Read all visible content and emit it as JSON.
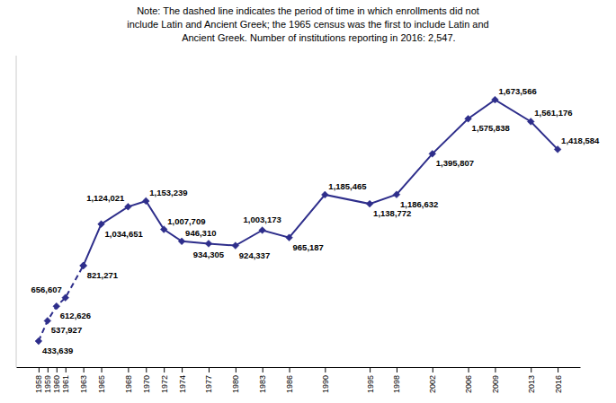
{
  "chart_data": {
    "type": "line",
    "annotations": [
      "Note: The dashed line indicates the period of time in which enrollments did not",
      "include Latin and Ancient Greek; the 1965 census was the first to include Latin and",
      "        Ancient Greek. Number of institutions reporting in 2016: 2,547."
    ],
    "x": [
      1958,
      1959,
      1960,
      1961,
      1963,
      1965,
      1968,
      1970,
      1972,
      1974,
      1977,
      1980,
      1983,
      1986,
      1990,
      1995,
      1998,
      2002,
      2006,
      2009,
      2013,
      2016
    ],
    "series": [
      {
        "color": "#2E2E8B",
        "line_style": "dashed",
        "values": [
          433639,
          537927,
          612626,
          656607,
          821271,
          null,
          null,
          null,
          null,
          null,
          null,
          null,
          null,
          null,
          null,
          null,
          null,
          null,
          null,
          null,
          null,
          null
        ],
        "value_labels": [
          "433,639",
          "537,927",
          "612,626",
          "656,607",
          null,
          null,
          null,
          null,
          null,
          null,
          null,
          null,
          null,
          null,
          null,
          null,
          null,
          null,
          null,
          null,
          null,
          null
        ]
      },
      {
        "color": "#2E2E8B",
        "line_style": "solid",
        "values": [
          null,
          null,
          null,
          null,
          821271,
          1034651,
          1124021,
          1153239,
          1007709,
          946310,
          934305,
          924337,
          1003173,
          965187,
          1185465,
          1138772,
          1186632,
          1395807,
          1575838,
          1673566,
          1561176,
          1418584
        ],
        "value_labels": [
          null,
          null,
          null,
          null,
          "821,271",
          "1,034,651",
          "1,124,021",
          "1,153,239",
          "1,007,709",
          "946,310",
          "934,305",
          "924,337",
          "1,003,173",
          "965,187",
          "1,185,465",
          "1,138,772",
          "1,186,632",
          "1,395,807",
          "1,575,838",
          "1,673,566",
          "1,561,176",
          "1,418,584"
        ]
      }
    ],
    "marker": "diamond",
    "data_labels": true,
    "xlim": [
      1955.5,
      2018.5
    ],
    "xticks": [
      1958,
      1959,
      1960,
      1961,
      1963,
      1965,
      1968,
      1970,
      1972,
      1974,
      1977,
      1980,
      1983,
      1986,
      1990,
      1995,
      1998,
      2002,
      2006,
      2009,
      2013,
      2016
    ],
    "ylim": [
      300000,
      1900000
    ],
    "tick_labels": "x",
    "grid": false
  }
}
